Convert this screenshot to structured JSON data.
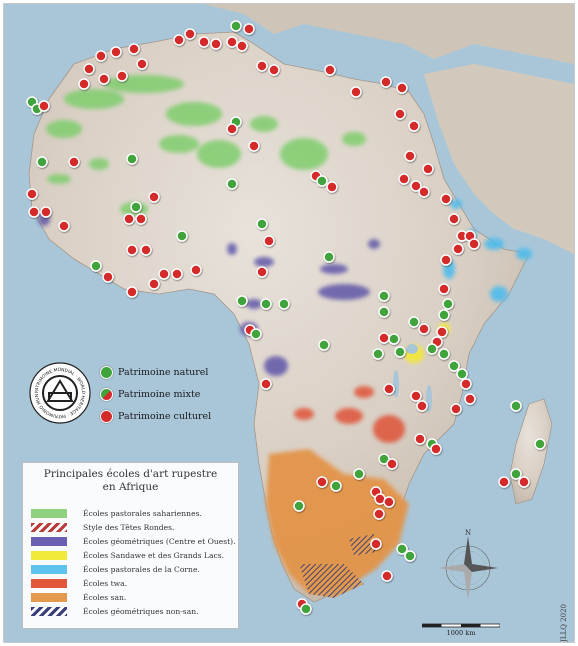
{
  "legend": {
    "symbols": [
      {
        "label": "Patrimoine naturel",
        "color": "#3fa33a"
      },
      {
        "label": "Patrimoine mixte",
        "color": "mixed"
      },
      {
        "label": "Patrimoine culturel",
        "color": "#d42a2a"
      }
    ],
    "logo_text": "PATRIMOINE MONDIAL · WORLD HERITAGE · PATRIMONIO MUNDIAL",
    "title_line1": "Principales écoles d'art rupestre",
    "title_line2": "en Afrique",
    "schools": [
      {
        "label": "Écoles pastorales sahariennes.",
        "color": "#8fd17f",
        "pattern": "solid"
      },
      {
        "label": "Style des Têtes Rondes.",
        "color": "#b93a3a",
        "pattern": "hatch"
      },
      {
        "label": "Écoles géométriques (Centre et Ouest).",
        "color": "#6a5fb0",
        "pattern": "solid"
      },
      {
        "label": "Écoles Sandawe et des Grands Lacs.",
        "color": "#f1ea3a",
        "pattern": "solid"
      },
      {
        "label": "Écoles pastorales de la Corne.",
        "color": "#5ec3ee",
        "pattern": "solid"
      },
      {
        "label": "Écoles twa.",
        "color": "#e2573c",
        "pattern": "solid"
      },
      {
        "label": "Écoles san.",
        "color": "#e39a4e",
        "pattern": "solid"
      },
      {
        "label": "Écoles géométriques non-san.",
        "color": "#3a3f7a",
        "pattern": "hatch"
      }
    ]
  },
  "compass": {
    "north_label": "N"
  },
  "scale": {
    "label": "1000 km"
  },
  "credit": "JLLQ 2020"
}
